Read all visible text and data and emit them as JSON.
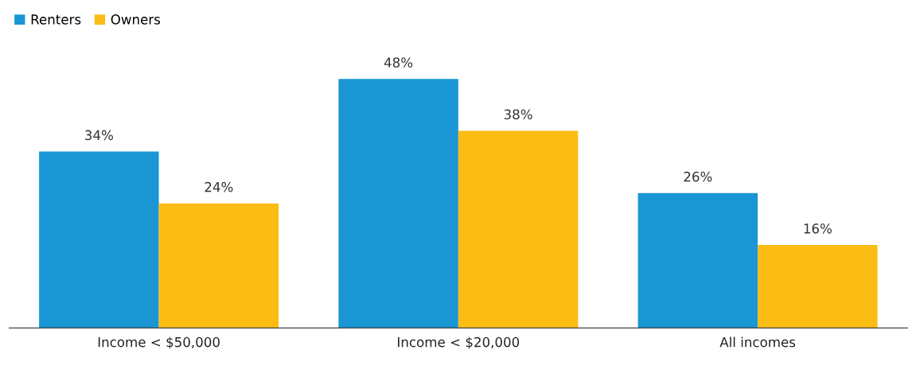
{
  "chart_data": {
    "type": "bar",
    "categories": [
      "Income < $50,000",
      "Income < $20,000",
      "All incomes"
    ],
    "series": [
      {
        "name": "Renters",
        "color": "#1a96d4",
        "values": [
          34,
          48,
          26
        ],
        "value_labels": [
          "34%",
          "48%",
          "26%"
        ]
      },
      {
        "name": "Owners",
        "color": "#fbbc14",
        "values": [
          24,
          38,
          16
        ],
        "value_labels": [
          "24%",
          "38%",
          "16%"
        ]
      }
    ],
    "legend": "top left",
    "grid": false
  }
}
